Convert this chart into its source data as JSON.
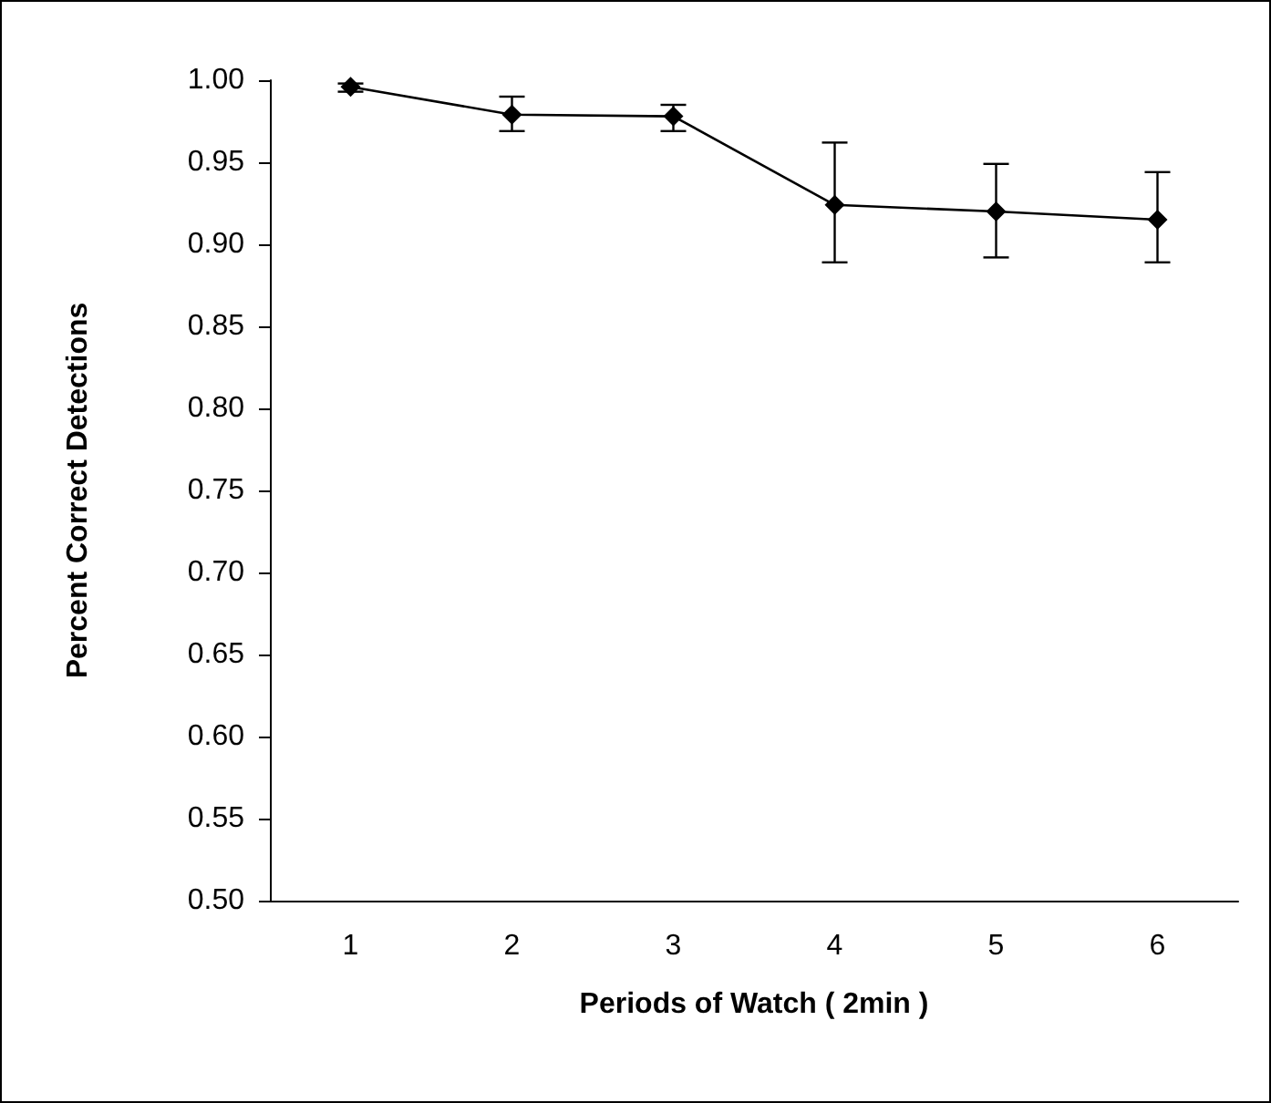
{
  "chart_data": {
    "type": "line",
    "xlabel": "Periods of Watch ( 2min )",
    "ylabel": "Percent Correct Detections",
    "categories": [
      "1",
      "2",
      "3",
      "4",
      "5",
      "6"
    ],
    "series": [
      {
        "color": "#000000",
        "values": [
          0.996,
          0.979,
          0.978,
          0.924,
          0.92,
          0.915
        ],
        "errors": [
          [
            0.993,
            0.998
          ],
          [
            0.969,
            0.99
          ],
          [
            0.969,
            0.985
          ],
          [
            0.889,
            0.962
          ],
          [
            0.892,
            0.949
          ],
          [
            0.889,
            0.944
          ]
        ]
      }
    ],
    "ylim": [
      0.5,
      1.0
    ],
    "yticks": [
      {
        "value": 0.5,
        "label": "0.50"
      },
      {
        "value": 0.55,
        "label": "0.55"
      },
      {
        "value": 0.6,
        "label": "0.60"
      },
      {
        "value": 0.65,
        "label": "0.65"
      },
      {
        "value": 0.7,
        "label": "0.70"
      },
      {
        "value": 0.75,
        "label": "0.75"
      },
      {
        "value": 0.8,
        "label": "0.80"
      },
      {
        "value": 0.85,
        "label": "0.85"
      },
      {
        "value": 0.9,
        "label": "0.90"
      },
      {
        "value": 0.95,
        "label": "0.95"
      },
      {
        "value": 1.0,
        "label": "1.00"
      }
    ],
    "grid": false,
    "marker": "diamond",
    "line_style": "solid"
  }
}
